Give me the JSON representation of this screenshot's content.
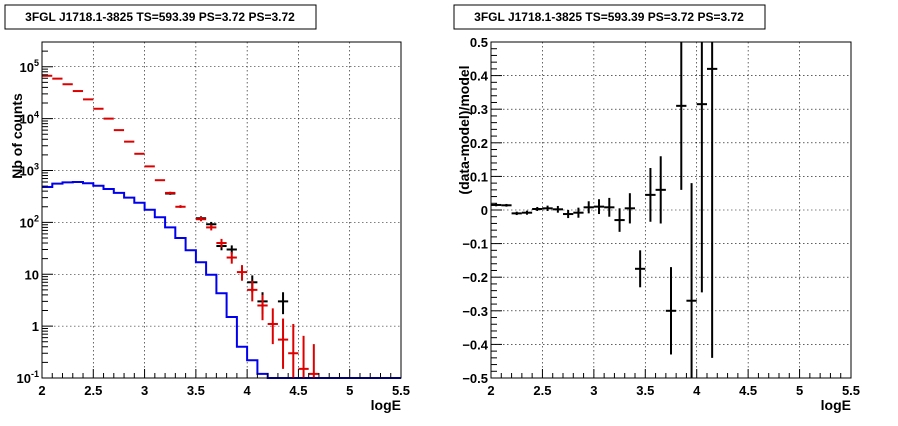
{
  "chart_data": [
    {
      "type": "step+errorbar",
      "title": "3FGL J1718.1-3825 TS=593.39 PS=3.72 PS=3.72",
      "xlabel": "logE",
      "ylabel": "Nb of counts",
      "xlim": [
        2,
        5.5
      ],
      "ylim": [
        0.1,
        300000
      ],
      "log_y": true,
      "grid": true,
      "xticks": [
        "2",
        "2.5",
        "3",
        "3.5",
        "4",
        "4.5",
        "5",
        "5.5"
      ],
      "yticks": [
        {
          "v": 0.1,
          "base": "10",
          "exp": "-1"
        },
        {
          "v": 1,
          "base": "1",
          "exp": ""
        },
        {
          "v": 10,
          "base": "10",
          "exp": ""
        },
        {
          "v": 100,
          "base": "10",
          "exp": "2"
        },
        {
          "v": 1000,
          "base": "10",
          "exp": "3"
        },
        {
          "v": 10000,
          "base": "10",
          "exp": "4"
        },
        {
          "v": 100000,
          "base": "10",
          "exp": "5"
        }
      ],
      "colors": {
        "model_total": "#dd0000",
        "data": "#000000",
        "model_source": "#0000ee"
      },
      "bin_edges": [
        2.0,
        2.1,
        2.2,
        2.3,
        2.4,
        2.5,
        2.6,
        2.7,
        2.8,
        2.9,
        3.0,
        3.1,
        3.2,
        3.3,
        3.4,
        3.5,
        3.6,
        3.7,
        3.8,
        3.9,
        4.0,
        4.1,
        4.2,
        4.3,
        4.4,
        4.5,
        4.6,
        4.7,
        4.8,
        4.9,
        5.0,
        5.1,
        5.2,
        5.3,
        5.4,
        5.5
      ],
      "model_source_counts": [
        480,
        560,
        590,
        600,
        570,
        510,
        440,
        370,
        300,
        240,
        175,
        125,
        80,
        50,
        29,
        17,
        9.8,
        4.3,
        1.5,
        0.4,
        0.22,
        0.12,
        0.1,
        0.1,
        0.1,
        0.1,
        0.1,
        0.1,
        0.1,
        0.1,
        0.1,
        0.1,
        0.1,
        0.1,
        0.1
      ],
      "model_total_points": [
        {
          "x": 2.05,
          "y": 67000
        },
        {
          "x": 2.15,
          "y": 59000
        },
        {
          "x": 2.25,
          "y": 46000
        },
        {
          "x": 2.35,
          "y": 34000
        },
        {
          "x": 2.45,
          "y": 23500
        },
        {
          "x": 2.55,
          "y": 15500
        },
        {
          "x": 2.65,
          "y": 10000
        },
        {
          "x": 2.75,
          "y": 6000
        },
        {
          "x": 2.85,
          "y": 3600
        },
        {
          "x": 2.95,
          "y": 2100
        },
        {
          "x": 3.05,
          "y": 1200
        },
        {
          "x": 3.15,
          "y": 650
        },
        {
          "x": 3.25,
          "y": 370,
          "ylo": 350,
          "yhi": 390
        },
        {
          "x": 3.35,
          "y": 200,
          "ylo": 190,
          "yhi": 215
        },
        {
          "x": 3.55,
          "y": 115,
          "ylo": 105,
          "yhi": 128
        },
        {
          "x": 3.65,
          "y": 80,
          "ylo": 70,
          "yhi": 90
        },
        {
          "x": 3.75,
          "y": 40,
          "ylo": 33,
          "yhi": 48
        },
        {
          "x": 3.85,
          "y": 21,
          "ylo": 16,
          "yhi": 27
        },
        {
          "x": 3.95,
          "y": 11,
          "ylo": 7.5,
          "yhi": 15
        },
        {
          "x": 4.05,
          "y": 5,
          "ylo": 3,
          "yhi": 7.5
        },
        {
          "x": 4.15,
          "y": 2.5,
          "ylo": 1.3,
          "yhi": 4
        },
        {
          "x": 4.25,
          "y": 1.1,
          "ylo": 0.45,
          "yhi": 2.2
        },
        {
          "x": 4.35,
          "y": 0.55,
          "ylo": 0.15,
          "yhi": 1.4
        },
        {
          "x": 4.45,
          "y": 0.3,
          "ylo": 0.1,
          "yhi": 1.1
        },
        {
          "x": 4.55,
          "y": 0.15,
          "ylo": 0.1,
          "yhi": 0.65
        },
        {
          "x": 4.65,
          "y": 0.12,
          "ylo": 0.1,
          "yhi": 0.45
        }
      ],
      "data_points": [
        {
          "x": 3.25,
          "y": 360,
          "ylo": 340,
          "yhi": 380
        },
        {
          "x": 3.55,
          "y": 120,
          "ylo": 110,
          "yhi": 131
        },
        {
          "x": 3.65,
          "y": 92,
          "ylo": 82,
          "yhi": 102
        },
        {
          "x": 3.75,
          "y": 35,
          "ylo": 29,
          "yhi": 41
        },
        {
          "x": 3.85,
          "y": 30,
          "ylo": 25,
          "yhi": 36
        },
        {
          "x": 4.05,
          "y": 7,
          "ylo": 4.5,
          "yhi": 9.5
        },
        {
          "x": 4.15,
          "y": 3,
          "ylo": 1.7,
          "yhi": 4.5
        },
        {
          "x": 4.35,
          "y": 3,
          "ylo": 1.7,
          "yhi": 4.5
        }
      ]
    },
    {
      "type": "errorbar",
      "title": "3FGL J1718.1-3825 TS=593.39 PS=3.72 PS=3.72",
      "xlabel": "logE",
      "ylabel": "(data-model)/model",
      "xlim": [
        2,
        5.5
      ],
      "ylim": [
        -0.5,
        0.5
      ],
      "grid": true,
      "xticks": [
        "2",
        "2.5",
        "3",
        "3.5",
        "4",
        "4.5",
        "5",
        "5.5"
      ],
      "yticks": [
        "−0.5",
        "−0.4",
        "−0.3",
        "−0.2",
        "−0.1",
        "0",
        "0.1",
        "0.2",
        "0.3",
        "0.4",
        "0.5"
      ],
      "color": "#000000",
      "points": [
        {
          "x": 2.05,
          "y": 0.015,
          "yerr": 0.004
        },
        {
          "x": 2.15,
          "y": 0.014,
          "yerr": 0.004
        },
        {
          "x": 2.25,
          "y": -0.01,
          "yerr": 0.005
        },
        {
          "x": 2.35,
          "y": -0.008,
          "yerr": 0.006
        },
        {
          "x": 2.45,
          "y": 0.003,
          "yerr": 0.006
        },
        {
          "x": 2.55,
          "y": 0.005,
          "yerr": 0.008
        },
        {
          "x": 2.65,
          "y": 0.002,
          "yerr": 0.01
        },
        {
          "x": 2.75,
          "y": -0.012,
          "yerr": 0.012
        },
        {
          "x": 2.85,
          "y": -0.008,
          "yerr": 0.015
        },
        {
          "x": 2.95,
          "y": 0.008,
          "yerr": 0.018
        },
        {
          "x": 3.05,
          "y": 0.01,
          "yerr": 0.022
        },
        {
          "x": 3.15,
          "y": 0.008,
          "yerr": 0.028
        },
        {
          "x": 3.25,
          "y": -0.03,
          "yerr": 0.035
        },
        {
          "x": 3.35,
          "y": 0.005,
          "yerr": 0.045
        },
        {
          "x": 3.45,
          "y": -0.175,
          "yerr": 0.055
        },
        {
          "x": 3.55,
          "y": 0.045,
          "yerr": 0.08
        },
        {
          "x": 3.65,
          "y": 0.06,
          "yerr": 0.1
        },
        {
          "x": 3.75,
          "y": -0.3,
          "yerr": 0.13
        },
        {
          "x": 3.85,
          "y": 0.31,
          "yerr": 0.25
        },
        {
          "x": 3.95,
          "y": -0.27,
          "yerr": 0.35
        },
        {
          "x": 4.05,
          "y": 0.315,
          "yerr": 0.56
        },
        {
          "x": 4.15,
          "y": 0.42,
          "yerr": 0.86
        }
      ]
    }
  ]
}
